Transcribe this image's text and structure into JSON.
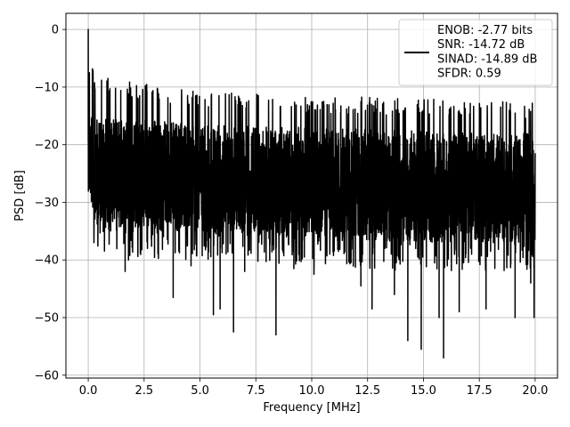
{
  "chart_data": {
    "type": "line",
    "title": "",
    "xlabel": "Frequency [MHz]",
    "ylabel": "PSD [dB]",
    "xlim": [
      -1.0,
      21.0
    ],
    "ylim": [
      -60.5,
      2.8
    ],
    "xticks": [
      0.0,
      2.5,
      5.0,
      7.5,
      10.0,
      12.5,
      15.0,
      17.5,
      20.0
    ],
    "xtick_labels": [
      "0.0",
      "2.5",
      "5.0",
      "7.5",
      "10.0",
      "12.5",
      "15.0",
      "17.5",
      "20.0"
    ],
    "yticks": [
      0,
      -10,
      -20,
      -30,
      -40,
      -50,
      -60
    ],
    "ytick_labels": [
      "0",
      "−10",
      "−20",
      "−30",
      "−40",
      "−50",
      "−60"
    ],
    "grid": true,
    "legend_position": "upper-right",
    "line_color": "#000000",
    "series": [
      {
        "name": "",
        "legend_lines": [
          "ENOB: -2.77 bits",
          "SNR: -14.72 dB",
          "SINAD: -14.89 dB",
          "SFDR: 0.59"
        ],
        "x_range": [
          0.0,
          20.0
        ],
        "profile": [
          {
            "x": 0.0,
            "peak": 0.0,
            "top": -15.0,
            "bottom": -28.0
          },
          {
            "x": 0.1,
            "peak": -7.0,
            "top": -15.0,
            "bottom": -30.0
          },
          {
            "x": 0.3,
            "peak": -10.5,
            "top": -15.5,
            "bottom": -33.0
          },
          {
            "x": 2.0,
            "peak": -12.0,
            "top": -15.5,
            "bottom": -35.0
          },
          {
            "x": 5.0,
            "peak": -13.5,
            "top": -16.5,
            "bottom": -35.0
          },
          {
            "x": 10.0,
            "peak": -14.5,
            "top": -17.0,
            "bottom": -36.0
          },
          {
            "x": 15.0,
            "peak": -15.0,
            "top": -17.5,
            "bottom": -37.0
          },
          {
            "x": 20.0,
            "peak": -15.5,
            "top": -18.0,
            "bottom": -37.0
          }
        ],
        "notable_points": [
          {
            "x": 0.0,
            "y": 0.0
          },
          {
            "x": 0.05,
            "y": -7.5
          },
          {
            "x": 0.3,
            "y": -10.3
          },
          {
            "x": 0.85,
            "y": -15.0
          },
          {
            "x": 1.65,
            "y": -42.0
          },
          {
            "x": 1.8,
            "y": -40.0
          },
          {
            "x": 2.3,
            "y": -11.5
          },
          {
            "x": 2.65,
            "y": -38.0
          },
          {
            "x": 3.8,
            "y": -46.5
          },
          {
            "x": 4.6,
            "y": -41.0
          },
          {
            "x": 5.6,
            "y": -49.5
          },
          {
            "x": 5.9,
            "y": -48.5
          },
          {
            "x": 6.5,
            "y": -52.5
          },
          {
            "x": 6.9,
            "y": -13.2
          },
          {
            "x": 7.0,
            "y": -42.0
          },
          {
            "x": 8.4,
            "y": -53.0
          },
          {
            "x": 9.2,
            "y": -41.5
          },
          {
            "x": 10.1,
            "y": -42.5
          },
          {
            "x": 11.2,
            "y": -38.5
          },
          {
            "x": 12.2,
            "y": -44.5
          },
          {
            "x": 12.7,
            "y": -48.5
          },
          {
            "x": 13.7,
            "y": -46.0
          },
          {
            "x": 14.3,
            "y": -54.0
          },
          {
            "x": 14.9,
            "y": -55.5
          },
          {
            "x": 15.7,
            "y": -50.0
          },
          {
            "x": 15.9,
            "y": -57.0
          },
          {
            "x": 16.6,
            "y": -49.0
          },
          {
            "x": 17.8,
            "y": -48.5
          },
          {
            "x": 19.1,
            "y": -50.0
          },
          {
            "x": 19.8,
            "y": -44.0
          },
          {
            "x": 19.95,
            "y": -50.0
          }
        ]
      }
    ]
  }
}
